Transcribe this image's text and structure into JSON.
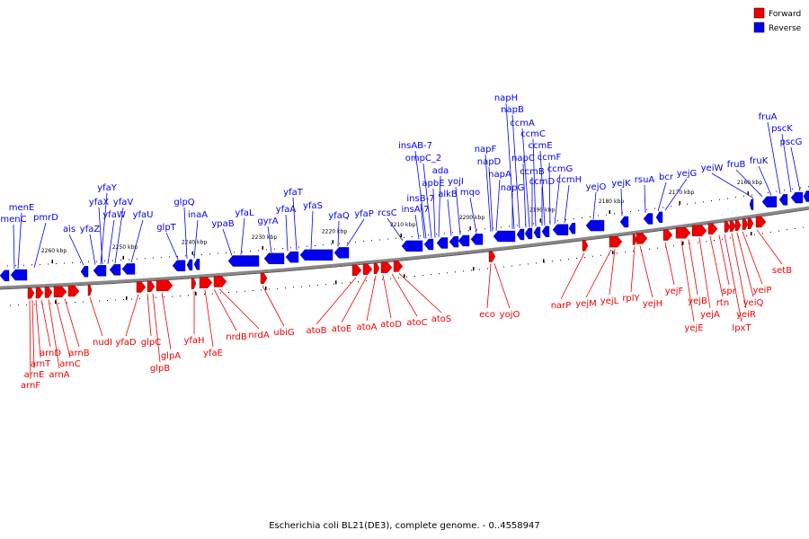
{
  "caption": "Escherichia coli BL21(DE3), complete genome. - 0..4558947",
  "legend": [
    {
      "name": "Forward",
      "color": "#ee0000"
    },
    {
      "name": "Reverse",
      "color": "#0000ee"
    }
  ],
  "colors": {
    "forward": "#ee0000",
    "reverse": "#0000ee",
    "backbone": "#888888"
  },
  "ticks": [
    "2260 kbp",
    "2250 kbp",
    "2240 kbp",
    "2230 kbp",
    "2220 kbp",
    "2210 kbp",
    "2200 kbp",
    "2190 kbp",
    "2180 kbp",
    "2170 kbp",
    "2160 kbp"
  ],
  "reverse_genes": [
    "menE",
    "menC",
    "pmrD",
    "ais",
    "yfaZ",
    "yfaY",
    "yfaX",
    "yfaW",
    "yfaV",
    "yfaU",
    "glpT",
    "glpQ",
    "inaA",
    "ypaB",
    "yfaL",
    "gyrA",
    "yfaA",
    "yfaT",
    "yfaS",
    "yfaQ",
    "yfaP",
    "rcsC",
    "insA-7",
    "insB-7",
    "insAB-7",
    "ompC_2",
    "apbE",
    "ada",
    "alkB",
    "yojI",
    "mqo",
    "napF",
    "napD",
    "napA",
    "napG",
    "napH",
    "napB",
    "napC",
    "ccmA",
    "ccmB",
    "ccmC",
    "ccmD",
    "ccmE",
    "ccmF",
    "ccmG",
    "ccmH",
    "yejO",
    "yejK",
    "rsuA",
    "bcr",
    "yejG",
    "yeiW",
    "fruB",
    "fruK",
    "fruA",
    "pscK",
    "pscG"
  ],
  "forward_genes": [
    "arnF",
    "arnE",
    "arnT",
    "arnD",
    "arnA",
    "arnC",
    "arnB",
    "nudI",
    "yfaD",
    "glpC",
    "glpB",
    "glpA",
    "yfaH",
    "yfaE",
    "nrdB",
    "nrdA",
    "ubiG",
    "atoB",
    "atoE",
    "atoA",
    "atoD",
    "atoC",
    "atoS",
    "eco",
    "yojO",
    "narP",
    "yejM",
    "yejL",
    "rplY",
    "yejH",
    "yejF",
    "yejE",
    "yejB",
    "yejA",
    "rtn",
    "spr",
    "lpxT",
    "yeiR",
    "yeiQ",
    "yeiP",
    "setB"
  ]
}
